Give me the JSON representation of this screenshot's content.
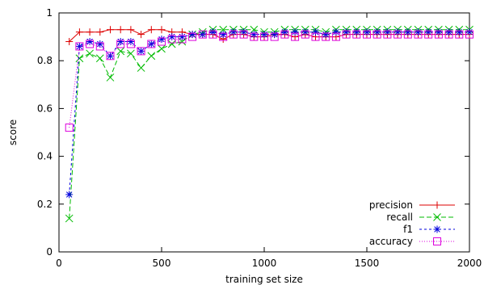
{
  "chart_data": {
    "type": "line",
    "title": "",
    "xlabel": "training set size",
    "ylabel": "score",
    "xlim": [
      0,
      2000
    ],
    "ylim": [
      0,
      1
    ],
    "xticks": [
      0,
      500,
      1000,
      1500,
      2000
    ],
    "yticks": [
      0,
      0.2,
      0.4,
      0.6,
      0.8,
      1
    ],
    "xtick_labels": [
      "0",
      "500",
      "1000",
      "1500",
      "2000"
    ],
    "ytick_labels": [
      "0",
      "0.2",
      "0.4",
      "0.6",
      "0.8",
      "1"
    ],
    "grid": false,
    "legend_position": "bottom-right",
    "x": [
      50,
      100,
      150,
      200,
      250,
      300,
      350,
      400,
      450,
      500,
      550,
      600,
      650,
      700,
      750,
      800,
      850,
      900,
      950,
      1000,
      1050,
      1100,
      1150,
      1200,
      1250,
      1300,
      1350,
      1400,
      1450,
      1500,
      1550,
      1600,
      1650,
      1700,
      1750,
      1800,
      1850,
      1900,
      1950,
      2000
    ],
    "series": [
      {
        "name": "precision",
        "color": "#dd0000",
        "marker": "plus",
        "dash": "",
        "values": [
          0.88,
          0.92,
          0.92,
          0.92,
          0.93,
          0.93,
          0.93,
          0.91,
          0.93,
          0.93,
          0.92,
          0.92,
          0.91,
          0.91,
          0.91,
          0.89,
          0.91,
          0.91,
          0.9,
          0.9,
          0.91,
          0.91,
          0.9,
          0.91,
          0.9,
          0.9,
          0.9,
          0.91,
          0.91,
          0.91,
          0.91,
          0.91,
          0.91,
          0.91,
          0.91,
          0.91,
          0.91,
          0.91,
          0.91,
          0.91
        ]
      },
      {
        "name": "recall",
        "color": "#00bb00",
        "marker": "cross",
        "dash": "6,3",
        "values": [
          0.14,
          0.81,
          0.83,
          0.81,
          0.73,
          0.84,
          0.83,
          0.77,
          0.82,
          0.85,
          0.87,
          0.88,
          0.91,
          0.92,
          0.93,
          0.93,
          0.93,
          0.93,
          0.93,
          0.92,
          0.92,
          0.93,
          0.93,
          0.93,
          0.93,
          0.92,
          0.93,
          0.93,
          0.93,
          0.93,
          0.93,
          0.93,
          0.93,
          0.93,
          0.93,
          0.93,
          0.93,
          0.93,
          0.93,
          0.93
        ]
      },
      {
        "name": "f1",
        "color": "#0000dd",
        "marker": "star",
        "dash": "3,3",
        "values": [
          0.24,
          0.86,
          0.88,
          0.87,
          0.82,
          0.88,
          0.88,
          0.84,
          0.87,
          0.89,
          0.9,
          0.9,
          0.91,
          0.91,
          0.92,
          0.91,
          0.92,
          0.92,
          0.91,
          0.91,
          0.91,
          0.92,
          0.92,
          0.92,
          0.92,
          0.91,
          0.92,
          0.92,
          0.92,
          0.92,
          0.92,
          0.92,
          0.92,
          0.92,
          0.92,
          0.92,
          0.92,
          0.92,
          0.92,
          0.92
        ]
      },
      {
        "name": "accuracy",
        "color": "#dd00dd",
        "marker": "square",
        "dash": "1,2",
        "values": [
          0.52,
          0.86,
          0.87,
          0.86,
          0.82,
          0.87,
          0.87,
          0.84,
          0.87,
          0.88,
          0.89,
          0.89,
          0.9,
          0.91,
          0.91,
          0.9,
          0.91,
          0.91,
          0.9,
          0.9,
          0.9,
          0.91,
          0.9,
          0.91,
          0.9,
          0.9,
          0.9,
          0.91,
          0.91,
          0.91,
          0.91,
          0.91,
          0.91,
          0.91,
          0.91,
          0.91,
          0.91,
          0.91,
          0.91,
          0.91
        ]
      }
    ]
  }
}
